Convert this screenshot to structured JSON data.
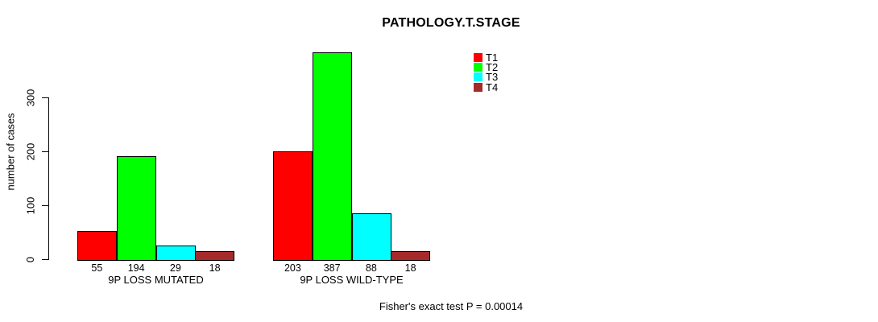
{
  "chart_data": {
    "type": "bar",
    "title": "PATHOLOGY.T.STAGE",
    "ylabel": "number of cases",
    "xlabel": "",
    "groups": [
      "9P LOSS MUTATED",
      "9P LOSS WILD-TYPE"
    ],
    "series": [
      {
        "name": "T1",
        "color": "#ff0000",
        "values": [
          55,
          203
        ]
      },
      {
        "name": "T2",
        "color": "#00ff00",
        "values": [
          194,
          387
        ]
      },
      {
        "name": "T3",
        "color": "#00ffff",
        "values": [
          29,
          88
        ]
      },
      {
        "name": "T4",
        "color": "#a52a2a",
        "values": [
          18,
          18
        ]
      }
    ],
    "bar_value_labels": [
      [
        "55",
        "194",
        "29",
        "18"
      ],
      [
        "203",
        "387",
        "88",
        "18"
      ]
    ],
    "yticks": [
      "0",
      "100",
      "200",
      "300"
    ],
    "ylim": [
      0,
      300
    ],
    "grid": false,
    "legend_position": "top-right",
    "legend_entries": [
      "T1",
      "T2",
      "T3",
      "T4"
    ],
    "footnote": "Fisher's exact test P = 0.00014",
    "text_color": "#000000",
    "bar_border_color": "#000000"
  }
}
